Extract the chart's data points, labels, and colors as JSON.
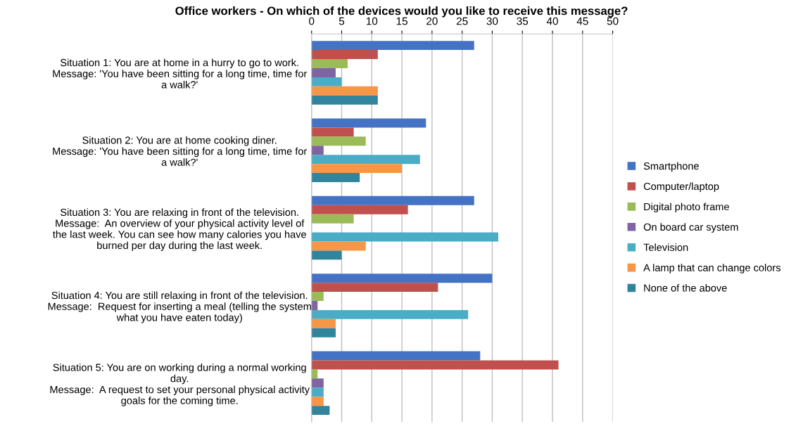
{
  "chart_data": {
    "type": "bar",
    "orientation": "horizontal",
    "title": "Office workers - On which of the devices would you like to receive this message?",
    "categories": [
      "Situation 1: You are at home in a hurry to go to work.\nMessage: 'You have been sitting for a long time, time for\na walk?'",
      "Situation 2: You are at home cooking diner.\nMessage: 'You have been sitting for a long time, time for\na walk?'",
      "Situation 3: You are relaxing in front of the television.\nMessage:  An overview of your physical activity level of\nthe last week. You can see how many calories you have\nburned per day during the last week.",
      "Situation 4: You are still relaxing in front of the television.\nMessage:  Request for inserting a meal (telling the system\nwhat you have eaten today)",
      "Situation 5: You are on working during a normal working\nday.\nMessage:  A request to set your personal physical activity\ngoals for the coming time."
    ],
    "series": [
      {
        "name": "Smartphone",
        "color": "#4472c4",
        "values": [
          27,
          19,
          27,
          30,
          28
        ]
      },
      {
        "name": "Computer/laptop",
        "color": "#c0504d",
        "values": [
          11,
          7,
          16,
          21,
          41
        ]
      },
      {
        "name": "Digital photo frame",
        "color": "#9bbb59",
        "values": [
          6,
          9,
          7,
          2,
          1
        ]
      },
      {
        "name": "On board car system",
        "color": "#8064a2",
        "values": [
          4,
          2,
          0,
          1,
          2
        ]
      },
      {
        "name": "Television",
        "color": "#4bacc6",
        "values": [
          5,
          18,
          31,
          26,
          2
        ]
      },
      {
        "name": "A lamp that can change colors",
        "color": "#f79646",
        "values": [
          11,
          15,
          9,
          4,
          2
        ]
      },
      {
        "name": "None of the above",
        "color": "#31849b",
        "values": [
          11,
          8,
          5,
          4,
          3
        ]
      }
    ],
    "xlim": [
      0,
      50
    ],
    "xticks": [
      0,
      5,
      10,
      15,
      20,
      25,
      30,
      35,
      40,
      45,
      50
    ],
    "grid": "x",
    "legend": "right"
  }
}
